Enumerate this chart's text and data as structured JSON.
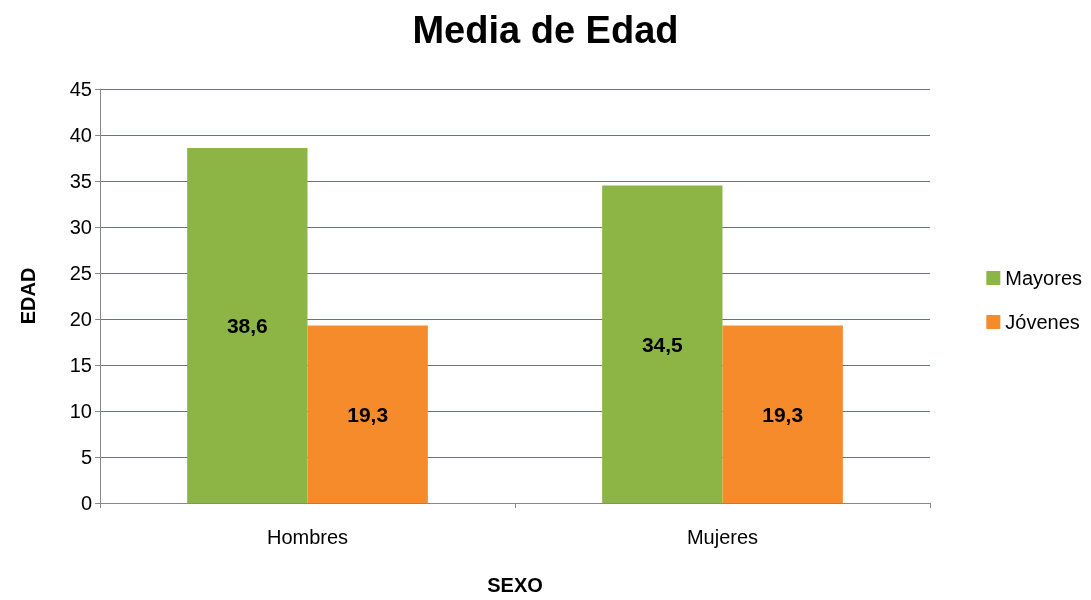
{
  "chart_data": {
    "type": "bar",
    "title": "Media de Edad",
    "xlabel": "SEXO",
    "ylabel": "EDAD",
    "categories": [
      "Hombres",
      "Mujeres"
    ],
    "series": [
      {
        "name": "Mayores",
        "color": "#8cb545",
        "values": [
          38.6,
          34.5
        ],
        "value_labels": [
          "38,6",
          "34,5"
        ]
      },
      {
        "name": "Jóvenes",
        "color": "#f68b2c",
        "values": [
          19.3,
          19.3
        ],
        "value_labels": [
          "19,3",
          "19,3"
        ]
      }
    ],
    "ylim": [
      0,
      45
    ],
    "yticks": [
      0,
      5,
      10,
      15,
      20,
      25,
      30,
      35,
      40,
      45
    ],
    "grid": "y",
    "legend": "right"
  }
}
